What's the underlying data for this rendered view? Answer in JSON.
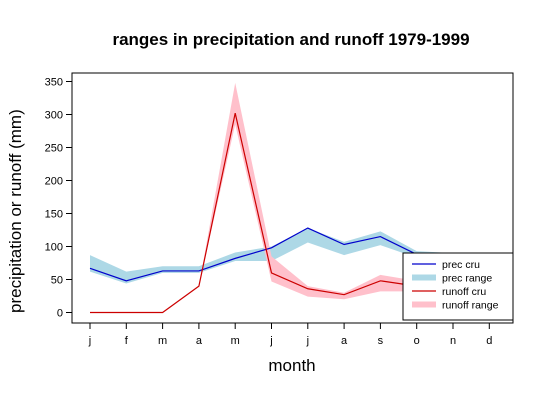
{
  "chart_data": {
    "type": "line",
    "title": "ranges in precipitation and runoff 1979-1999",
    "xlabel": "month",
    "ylabel": "precipitation or runoff (mm)",
    "categories": [
      "j",
      "f",
      "m",
      "a",
      "m",
      "j",
      "j",
      "a",
      "s",
      "o",
      "n",
      "d"
    ],
    "ylim": [
      -10,
      360
    ],
    "yticks": [
      0,
      50,
      100,
      150,
      200,
      250,
      300,
      350
    ],
    "series": [
      {
        "name": "prec cru",
        "kind": "line",
        "color": "#0000cc",
        "values": [
          67,
          48,
          63,
          63,
          82,
          98,
          128,
          103,
          115,
          88,
          87,
          87
        ]
      },
      {
        "name": "prec range",
        "kind": "range",
        "color": "#add8e6",
        "low": [
          62,
          44,
          60,
          60,
          78,
          78,
          106,
          87,
          102,
          83,
          82,
          82
        ],
        "high": [
          87,
          62,
          70,
          70,
          91,
          100,
          128,
          107,
          123,
          93,
          90,
          90
        ]
      },
      {
        "name": "runoff cru",
        "kind": "line",
        "color": "#cc0000",
        "values": [
          0,
          0,
          0,
          40,
          302,
          60,
          36,
          27,
          48,
          40,
          38,
          38
        ]
      },
      {
        "name": "runoff range",
        "kind": "range",
        "color": "#ffc0cb",
        "low": [
          0,
          0,
          0,
          40,
          285,
          47,
          24,
          20,
          32,
          32,
          30,
          30
        ],
        "high": [
          0,
          0,
          0,
          40,
          348,
          85,
          40,
          30,
          57,
          48,
          45,
          45
        ]
      }
    ],
    "legend": {
      "placement": "bottom-right",
      "entries": [
        "prec cru",
        "prec range",
        "runoff cru",
        "runoff range"
      ]
    },
    "grid": false
  }
}
